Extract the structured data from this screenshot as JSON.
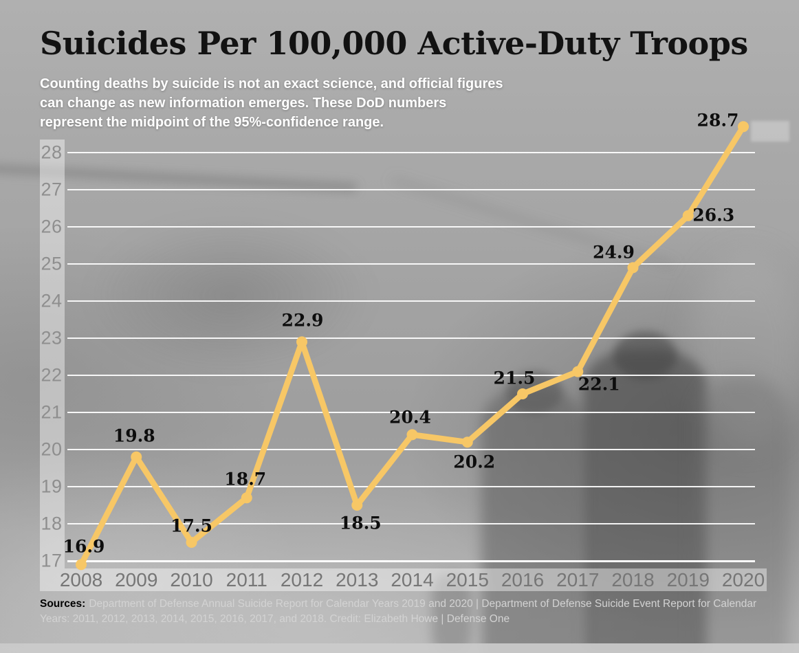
{
  "header": {
    "title": "Suicides Per 100,000 Active-Duty Troops",
    "subtitle": "Counting deaths by suicide is not an exact science, and official figures\ncan change as new information emerges. These DoD numbers\nrepresent the midpoint of the 95%-confidence range."
  },
  "footer": {
    "sources_label": "Sources:",
    "sources_text": "Department of Defense Annual Suicide Report for Calendar Years 2019 and 2020 | Department of Defense Suicide Event Report for Calendar\nYears: 2011, 2012, 2013, 2014, 2015, 2016, 2017, and 2018. Credit: Elizabeth Howe | Defense One"
  },
  "chart_data": {
    "type": "line",
    "title": "Suicides Per 100,000 Active-Duty Troops",
    "x": [
      2008,
      2009,
      2010,
      2011,
      2012,
      2013,
      2014,
      2015,
      2016,
      2017,
      2018,
      2019,
      2020
    ],
    "series": [
      {
        "name": "Suicides per 100,000 active-duty troops",
        "values": [
          16.9,
          19.8,
          17.5,
          18.7,
          22.9,
          18.5,
          20.4,
          20.2,
          21.5,
          22.1,
          24.9,
          26.3,
          28.7
        ]
      }
    ],
    "point_labels": [
      "16.9",
      "19.8",
      "17.5",
      "18.7",
      "22.9",
      "18.5",
      "20.4",
      "20.2",
      "21.5",
      "22.1",
      "24.9",
      "26.3",
      "28.7"
    ],
    "yticks": [
      17,
      18,
      19,
      20,
      21,
      22,
      23,
      24,
      25,
      26,
      27,
      28
    ],
    "ylim": [
      17,
      28
    ],
    "xlabel": "",
    "ylabel": "",
    "grid": true,
    "legend": "none",
    "colors": {
      "line": "#f7c766",
      "point_label": "#0d0d0d",
      "gridline": "#ffffff",
      "y_tick": "#8e8e8e",
      "x_tick": "#767676",
      "title": "#121212",
      "subtitle": "#ffffff",
      "sources_label": "#000000",
      "sources_text": "#d3d3d3",
      "axis_band": "rgba(255,255,255,0.42)"
    }
  }
}
